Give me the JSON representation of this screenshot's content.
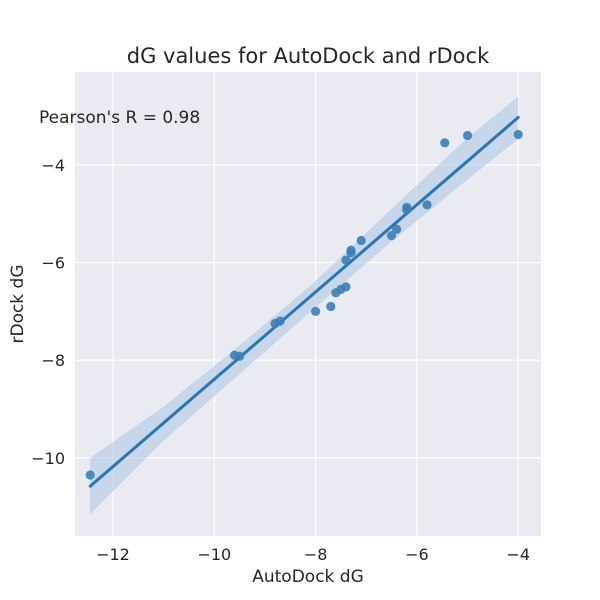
{
  "chart_data": {
    "type": "scatter",
    "title": "dG values for AutoDock and rDock",
    "xlabel": "AutoDock dG",
    "ylabel": "rDock dG",
    "annotation": "Pearson's R = 0.98",
    "xlim": [
      -12.75,
      -3.55
    ],
    "ylim": [
      -11.6,
      -2.1
    ],
    "xticks": [
      -12,
      -10,
      -8,
      -6,
      -4
    ],
    "yticks": [
      -10,
      -8,
      -6,
      -4
    ],
    "xtick_labels": [
      "−12",
      "−10",
      "−8",
      "−6",
      "−4"
    ],
    "ytick_labels": [
      "−10",
      "−8",
      "−6",
      "−4"
    ],
    "grid": true,
    "background": "#eaeaf2",
    "grid_color": "#ffffff",
    "point_color": "#3a7fb8",
    "line_color": "#2a75b3",
    "ci_color": "#a9c5e0",
    "series": [
      {
        "points": [
          {
            "x": -12.45,
            "y": -10.35
          },
          {
            "x": -9.6,
            "y": -7.9
          },
          {
            "x": -9.5,
            "y": -7.92
          },
          {
            "x": -8.8,
            "y": -7.25
          },
          {
            "x": -8.7,
            "y": -7.2
          },
          {
            "x": -8.0,
            "y": -7.0
          },
          {
            "x": -7.7,
            "y": -6.9
          },
          {
            "x": -7.6,
            "y": -6.62
          },
          {
            "x": -7.5,
            "y": -6.55
          },
          {
            "x": -7.4,
            "y": -6.5
          },
          {
            "x": -7.4,
            "y": -5.95
          },
          {
            "x": -7.3,
            "y": -5.8
          },
          {
            "x": -7.3,
            "y": -5.75
          },
          {
            "x": -7.1,
            "y": -5.55
          },
          {
            "x": -6.5,
            "y": -5.45
          },
          {
            "x": -6.4,
            "y": -5.32
          },
          {
            "x": -6.2,
            "y": -4.92
          },
          {
            "x": -6.2,
            "y": -4.87
          },
          {
            "x": -5.8,
            "y": -4.82
          },
          {
            "x": -5.45,
            "y": -3.55
          },
          {
            "x": -5.0,
            "y": -3.4
          },
          {
            "x": -4.0,
            "y": -3.38
          }
        ]
      }
    ],
    "regression": {
      "x": [
        -12.45,
        -4.0
      ],
      "y": [
        -10.58,
        -3.03
      ]
    },
    "confidence_band": {
      "x": [
        -12.45,
        -11.0,
        -9.5,
        -8.0,
        -6.5,
        -5.0,
        -4.0
      ],
      "lower": [
        -11.15,
        -9.65,
        -8.28,
        -6.92,
        -5.57,
        -4.3,
        -3.47
      ],
      "upper": [
        -10.0,
        -8.95,
        -7.7,
        -6.38,
        -4.9,
        -3.45,
        -2.6
      ]
    }
  }
}
